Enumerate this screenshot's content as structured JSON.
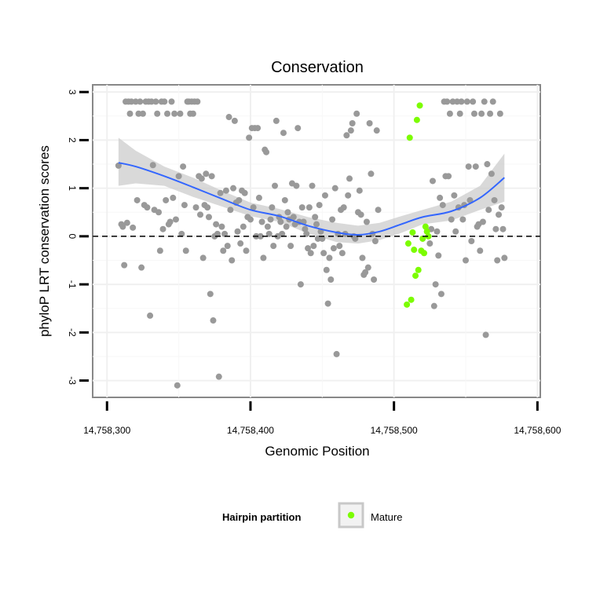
{
  "chart_data": {
    "type": "scatter",
    "title": "Conservation",
    "xlabel": "Genomic Position",
    "ylabel": "phyloP LRT conservation scores",
    "xlim": [
      14758290,
      14758602
    ],
    "ylim": [
      -3.35,
      3.15
    ],
    "x_ticks": [
      14758300,
      14758400,
      14758500,
      14758600
    ],
    "x_tick_labels": [
      "14,758,300",
      "14,758,400",
      "14,758,500",
      "14,758,600"
    ],
    "y_ticks": [
      -3,
      -2,
      -1,
      0,
      1,
      2,
      3
    ],
    "y_tick_labels": [
      "-3",
      "-2",
      "-1",
      "0",
      "1",
      "2",
      "3"
    ],
    "grid": true,
    "reference_line": 0,
    "legend": {
      "title": "Hairpin partition",
      "position": "bottom",
      "entries": [
        "Mature"
      ]
    },
    "colors": {
      "other": "#999999",
      "mature": "#7cfc00",
      "smooth": "#3366ff",
      "band": "#cccccc",
      "refline": "#000000"
    },
    "series": [
      {
        "points": [
          [
            14758308,
            1.47
          ],
          [
            14758310,
            0.25
          ],
          [
            14758311,
            0.2
          ],
          [
            14758312,
            -0.6
          ],
          [
            14758313,
            2.8
          ],
          [
            14758314,
            0.28
          ],
          [
            14758315,
            2.8
          ],
          [
            14758316,
            2.55
          ],
          [
            14758317,
            2.8
          ],
          [
            14758318,
            0.18
          ],
          [
            14758320,
            2.8
          ],
          [
            14758321,
            0.75
          ],
          [
            14758322,
            2.55
          ],
          [
            14758323,
            2.8
          ],
          [
            14758324,
            -0.65
          ],
          [
            14758325,
            2.55
          ],
          [
            14758326,
            0.65
          ],
          [
            14758327,
            2.8
          ],
          [
            14758328,
            0.6
          ],
          [
            14758329,
            2.8
          ],
          [
            14758330,
            -1.65
          ],
          [
            14758331,
            2.8
          ],
          [
            14758332,
            1.48
          ],
          [
            14758333,
            0.55
          ],
          [
            14758334,
            2.8
          ],
          [
            14758335,
            2.55
          ],
          [
            14758336,
            0.5
          ],
          [
            14758337,
            -0.3
          ],
          [
            14758338,
            2.8
          ],
          [
            14758339,
            0.15
          ],
          [
            14758340,
            2.8
          ],
          [
            14758341,
            0.75
          ],
          [
            14758342,
            2.55
          ],
          [
            14758343,
            0.25
          ],
          [
            14758344,
            0.3
          ],
          [
            14758345,
            2.8
          ],
          [
            14758346,
            0.8
          ],
          [
            14758347,
            2.55
          ],
          [
            14758348,
            0.35
          ],
          [
            14758349,
            -3.1
          ],
          [
            14758350,
            1.25
          ],
          [
            14758351,
            2.55
          ],
          [
            14758352,
            0.05
          ],
          [
            14758353,
            1.45
          ],
          [
            14758354,
            0.65
          ],
          [
            14758355,
            -0.3
          ],
          [
            14758356,
            2.8
          ],
          [
            14758357,
            2.8
          ],
          [
            14758358,
            2.55
          ],
          [
            14758359,
            2.8
          ],
          [
            14758360,
            2.55
          ],
          [
            14758361,
            2.8
          ],
          [
            14758362,
            0.6
          ],
          [
            14758363,
            2.8
          ],
          [
            14758364,
            1.25
          ],
          [
            14758365,
            0.45
          ],
          [
            14758366,
            1.2
          ],
          [
            14758367,
            -0.45
          ],
          [
            14758368,
            0.65
          ],
          [
            14758369,
            1.3
          ],
          [
            14758370,
            0.6
          ],
          [
            14758371,
            0.4
          ],
          [
            14758372,
            -1.2
          ],
          [
            14758373,
            1.25
          ],
          [
            14758374,
            -1.75
          ],
          [
            14758375,
            0.0
          ],
          [
            14758376,
            0.25
          ],
          [
            14758377,
            0.05
          ],
          [
            14758378,
            -2.92
          ],
          [
            14758379,
            0.9
          ],
          [
            14758380,
            0.2
          ],
          [
            14758381,
            -0.3
          ],
          [
            14758382,
            0.05
          ],
          [
            14758383,
            0.95
          ],
          [
            14758384,
            -0.2
          ],
          [
            14758385,
            2.48
          ],
          [
            14758386,
            0.55
          ],
          [
            14758387,
            -0.5
          ],
          [
            14758388,
            1.0
          ],
          [
            14758389,
            2.4
          ],
          [
            14758390,
            0.7
          ],
          [
            14758391,
            0.1
          ],
          [
            14758392,
            0.75
          ],
          [
            14758393,
            -0.15
          ],
          [
            14758394,
            0.95
          ],
          [
            14758395,
            0.2
          ],
          [
            14758396,
            0.9
          ],
          [
            14758397,
            -0.3
          ],
          [
            14758398,
            0.4
          ],
          [
            14758399,
            2.05
          ],
          [
            14758400,
            0.35
          ],
          [
            14758401,
            2.25
          ],
          [
            14758402,
            0.6
          ],
          [
            14758403,
            2.25
          ],
          [
            14758404,
            0.0
          ],
          [
            14758405,
            2.25
          ],
          [
            14758406,
            0.8
          ],
          [
            14758407,
            0.0
          ],
          [
            14758408,
            0.3
          ],
          [
            14758409,
            -0.45
          ],
          [
            14758410,
            1.8
          ],
          [
            14758411,
            1.75
          ],
          [
            14758412,
            0.2
          ],
          [
            14758413,
            0.05
          ],
          [
            14758414,
            0.35
          ],
          [
            14758415,
            0.6
          ],
          [
            14758416,
            -0.2
          ],
          [
            14758417,
            1.05
          ],
          [
            14758418,
            2.4
          ],
          [
            14758419,
            0.0
          ],
          [
            14758420,
            0.4
          ],
          [
            14758421,
            0.3
          ],
          [
            14758422,
            0.05
          ],
          [
            14758423,
            2.15
          ],
          [
            14758424,
            0.75
          ],
          [
            14758425,
            0.2
          ],
          [
            14758426,
            0.5
          ],
          [
            14758427,
            0.35
          ],
          [
            14758428,
            -0.2
          ],
          [
            14758429,
            1.1
          ],
          [
            14758430,
            0.4
          ],
          [
            14758431,
            0.25
          ],
          [
            14758432,
            1.05
          ],
          [
            14758433,
            2.25
          ],
          [
            14758434,
            0.3
          ],
          [
            14758435,
            -1.0
          ],
          [
            14758436,
            0.6
          ],
          [
            14758437,
            0.3
          ],
          [
            14758438,
            0.15
          ],
          [
            14758439,
            0.05
          ],
          [
            14758440,
            -0.25
          ],
          [
            14758441,
            0.6
          ],
          [
            14758442,
            -0.35
          ],
          [
            14758443,
            1.05
          ],
          [
            14758444,
            -0.2
          ],
          [
            14758445,
            0.4
          ],
          [
            14758446,
            0.25
          ],
          [
            14758447,
            -0.05
          ],
          [
            14758448,
            0.65
          ],
          [
            14758449,
            0.1
          ],
          [
            14758450,
            -0.05
          ],
          [
            14758451,
            -0.35
          ],
          [
            14758452,
            0.85
          ],
          [
            14758453,
            -0.7
          ],
          [
            14758454,
            -1.4
          ],
          [
            14758455,
            -0.45
          ],
          [
            14758456,
            -0.9
          ],
          [
            14758457,
            0.35
          ],
          [
            14758458,
            -0.25
          ],
          [
            14758459,
            1.0
          ],
          [
            14758460,
            -2.45
          ],
          [
            14758461,
            0.05
          ],
          [
            14758462,
            -0.2
          ],
          [
            14758463,
            0.55
          ],
          [
            14758464,
            -0.35
          ],
          [
            14758465,
            0.6
          ],
          [
            14758466,
            0.05
          ],
          [
            14758467,
            2.1
          ],
          [
            14758468,
            0.85
          ],
          [
            14758469,
            1.2
          ],
          [
            14758470,
            2.2
          ],
          [
            14758471,
            2.35
          ],
          [
            14758472,
            0.0
          ],
          [
            14758473,
            -0.05
          ],
          [
            14758474,
            2.55
          ],
          [
            14758475,
            0.5
          ],
          [
            14758476,
            0.95
          ],
          [
            14758477,
            0.45
          ],
          [
            14758478,
            -0.45
          ],
          [
            14758479,
            -0.8
          ],
          [
            14758480,
            -0.75
          ],
          [
            14758481,
            0.3
          ],
          [
            14758482,
            -0.65
          ],
          [
            14758483,
            2.35
          ],
          [
            14758484,
            1.3
          ],
          [
            14758485,
            0.05
          ],
          [
            14758486,
            -0.9
          ],
          [
            14758487,
            -0.1
          ],
          [
            14758488,
            2.2
          ],
          [
            14758489,
            0.55
          ],
          [
            14758525,
            -0.15
          ],
          [
            14758526,
            0.15
          ],
          [
            14758527,
            1.15
          ],
          [
            14758528,
            -1.45
          ],
          [
            14758529,
            -1.0
          ],
          [
            14758530,
            0.1
          ],
          [
            14758531,
            -0.4
          ],
          [
            14758532,
            0.8
          ],
          [
            14758533,
            -1.2
          ],
          [
            14758534,
            0.65
          ],
          [
            14758535,
            2.8
          ],
          [
            14758536,
            1.25
          ],
          [
            14758537,
            2.8
          ],
          [
            14758538,
            1.25
          ],
          [
            14758539,
            2.55
          ],
          [
            14758540,
            0.35
          ],
          [
            14758541,
            2.8
          ],
          [
            14758542,
            0.85
          ],
          [
            14758543,
            0.1
          ],
          [
            14758544,
            2.8
          ],
          [
            14758545,
            0.6
          ],
          [
            14758546,
            2.55
          ],
          [
            14758547,
            2.8
          ],
          [
            14758548,
            0.35
          ],
          [
            14758549,
            0.65
          ],
          [
            14758550,
            -0.5
          ],
          [
            14758551,
            2.8
          ],
          [
            14758552,
            1.45
          ],
          [
            14758553,
            0.75
          ],
          [
            14758554,
            -0.1
          ],
          [
            14758555,
            2.8
          ],
          [
            14758556,
            2.55
          ],
          [
            14758557,
            1.45
          ],
          [
            14758558,
            0.2
          ],
          [
            14758559,
            0.25
          ],
          [
            14758560,
            -0.3
          ],
          [
            14758561,
            2.55
          ],
          [
            14758562,
            0.3
          ],
          [
            14758563,
            2.8
          ],
          [
            14758564,
            -2.05
          ],
          [
            14758565,
            1.5
          ],
          [
            14758566,
            0.55
          ],
          [
            14758567,
            2.55
          ],
          [
            14758568,
            1.3
          ],
          [
            14758569,
            2.8
          ],
          [
            14758570,
            0.75
          ],
          [
            14758571,
            0.15
          ],
          [
            14758572,
            -0.5
          ],
          [
            14758573,
            0.45
          ],
          [
            14758574,
            2.55
          ],
          [
            14758575,
            0.6
          ],
          [
            14758576,
            0.15
          ],
          [
            14758577,
            -0.45
          ]
        ]
      },
      {
        "name": "Mature",
        "points": [
          [
            14758509,
            -1.42
          ],
          [
            14758510,
            -0.15
          ],
          [
            14758511,
            2.05
          ],
          [
            14758512,
            -1.32
          ],
          [
            14758513,
            0.08
          ],
          [
            14758514,
            -0.28
          ],
          [
            14758515,
            -0.82
          ],
          [
            14758516,
            2.42
          ],
          [
            14758517,
            -0.7
          ],
          [
            14758518,
            2.72
          ],
          [
            14758519,
            -0.3
          ],
          [
            14758520,
            -0.05
          ],
          [
            14758521,
            -0.35
          ],
          [
            14758522,
            0.2
          ],
          [
            14758523,
            0.1
          ],
          [
            14758524,
            0.0
          ]
        ]
      }
    ],
    "smooth": {
      "x": [
        14758308,
        14758320,
        14758340,
        14758360,
        14758380,
        14758400,
        14758420,
        14758440,
        14758460,
        14758475,
        14758490,
        14758505,
        14758520,
        14758540,
        14758560,
        14758577
      ],
      "y": [
        1.53,
        1.45,
        1.25,
        1.02,
        0.78,
        0.55,
        0.42,
        0.22,
        0.08,
        0.03,
        0.1,
        0.25,
        0.4,
        0.52,
        0.8,
        1.22
      ],
      "lower": [
        1.05,
        1.1,
        1.05,
        0.82,
        0.62,
        0.42,
        0.3,
        0.06,
        -0.12,
        -0.15,
        -0.08,
        0.07,
        0.25,
        0.33,
        0.55,
        0.72
      ],
      "upper": [
        2.05,
        1.78,
        1.45,
        1.22,
        0.95,
        0.7,
        0.57,
        0.4,
        0.28,
        0.22,
        0.28,
        0.42,
        0.55,
        0.72,
        1.05,
        1.72
      ]
    }
  }
}
